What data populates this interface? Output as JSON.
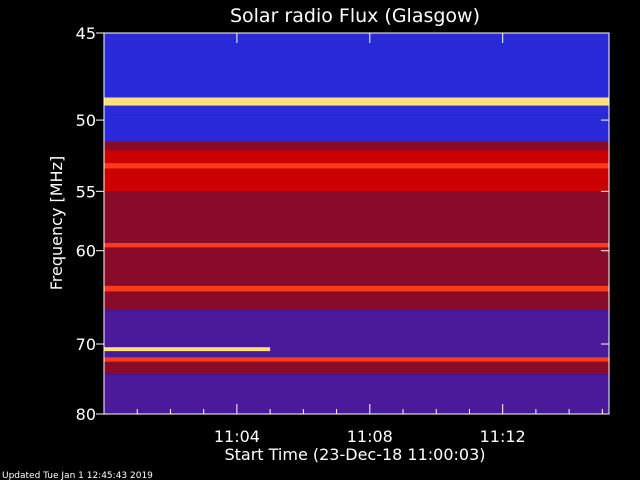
{
  "footer": {
    "updated": "Updated Tue Jan  1 12:45:43 2019"
  },
  "chart_data": {
    "type": "heatmap",
    "title": "Solar radio Flux (Glasgow)",
    "xlabel": "Start Time (23-Dec-18 11:00:03)",
    "ylabel": "Frequency [MHz]",
    "xticks": [
      "11:04",
      "11:08",
      "11:12"
    ],
    "xtick_minutes": [
      4,
      8,
      12
    ],
    "xlim_minutes": [
      0,
      15.2
    ],
    "yticks": [
      "45",
      "50",
      "55",
      "60",
      "70",
      "80"
    ],
    "ytick_values": [
      45,
      50,
      55,
      60,
      70,
      80
    ],
    "ylim": [
      45,
      80
    ],
    "yscale": "reciprocal",
    "color_scale": [
      "#120a54",
      "#2a2ad8",
      "#4a1a9a",
      "#8a0a2a",
      "#cc0000",
      "#ff3a1a",
      "#ffe07a"
    ],
    "band_levels": [
      [
        45.0,
        45.6,
        1
      ],
      [
        45.6,
        48.6,
        1
      ],
      [
        48.6,
        49.1,
        6
      ],
      [
        49.1,
        49.7,
        1
      ],
      [
        49.7,
        51.4,
        1
      ],
      [
        51.4,
        52.0,
        3
      ],
      [
        52.0,
        52.9,
        4
      ],
      [
        52.9,
        53.3,
        5
      ],
      [
        53.3,
        55.0,
        4
      ],
      [
        55.0,
        57.2,
        3
      ],
      [
        57.2,
        59.3,
        3
      ],
      [
        59.3,
        59.7,
        5
      ],
      [
        59.7,
        63.4,
        3
      ],
      [
        63.4,
        64.0,
        5
      ],
      [
        64.0,
        66.0,
        3
      ],
      [
        66.0,
        69.0,
        2
      ],
      [
        69.0,
        70.5,
        2
      ],
      [
        70.5,
        71.7,
        2
      ],
      [
        71.7,
        72.3,
        5
      ],
      [
        72.3,
        74.0,
        3
      ],
      [
        74.0,
        80.0,
        2
      ]
    ],
    "bursts": [
      {
        "t_start": 0,
        "t_end": 5.0,
        "freq_low": 70.4,
        "freq_high": 70.9,
        "level": 6
      }
    ]
  }
}
